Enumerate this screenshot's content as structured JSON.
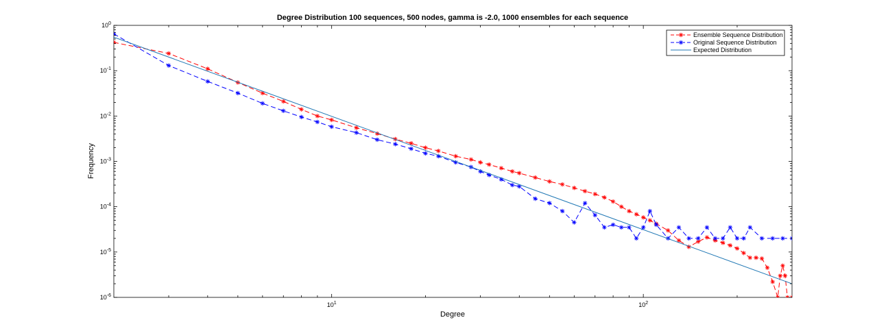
{
  "chart_data": {
    "type": "line",
    "title": "Degree Distribution 100 sequences, 500 nodes, gamma is -2.0, 1000 ensembles for each sequence",
    "xlabel": "Degree",
    "ylabel": "Frequency",
    "xscale": "log",
    "yscale": "log",
    "xlim": [
      2,
      300
    ],
    "ylim": [
      1e-06,
      1
    ],
    "grid": false,
    "legend_position": "top-right",
    "x_ticks": [
      {
        "value": 10,
        "base": "10",
        "exp": "1"
      },
      {
        "value": 100,
        "base": "10",
        "exp": "2"
      }
    ],
    "y_ticks": [
      {
        "value": 1,
        "base": "10",
        "exp": "0"
      },
      {
        "value": 0.1,
        "base": "10",
        "exp": "-1"
      },
      {
        "value": 0.01,
        "base": "10",
        "exp": "-2"
      },
      {
        "value": 0.001,
        "base": "10",
        "exp": "-3"
      },
      {
        "value": 0.0001,
        "base": "10",
        "exp": "-4"
      },
      {
        "value": 1e-05,
        "base": "10",
        "exp": "-5"
      },
      {
        "value": 1e-06,
        "base": "10",
        "exp": "-6"
      }
    ],
    "series": [
      {
        "name": "Ensemble Sequence Distribution",
        "color": "#ff0000",
        "line_style": "dashed",
        "marker": "asterisk",
        "x": [
          2,
          3,
          4,
          5,
          6,
          7,
          8,
          9,
          10,
          12,
          14,
          16,
          18,
          20,
          22,
          25,
          28,
          30,
          32,
          35,
          38,
          40,
          45,
          50,
          55,
          60,
          65,
          70,
          75,
          80,
          85,
          90,
          95,
          100,
          105,
          110,
          120,
          130,
          140,
          150,
          160,
          170,
          180,
          190,
          200,
          210,
          220,
          230,
          240,
          250,
          260,
          270,
          275,
          280,
          285,
          290,
          300
        ],
        "y": [
          0.42,
          0.24,
          0.11,
          0.055,
          0.032,
          0.021,
          0.014,
          0.01,
          0.0082,
          0.0055,
          0.0041,
          0.0031,
          0.0025,
          0.002,
          0.0017,
          0.0013,
          0.0011,
          0.00095,
          0.00085,
          0.00071,
          0.0006,
          0.00055,
          0.00044,
          0.00036,
          0.00031,
          0.00026,
          0.00022,
          0.00019,
          0.00016,
          0.00013,
          0.0001,
          8e-05,
          6.8e-05,
          5.8e-05,
          5e-05,
          4.2e-05,
          3e-05,
          1.8e-05,
          1.3e-05,
          1.7e-05,
          2.1e-05,
          1.8e-05,
          1.6e-05,
          1.4e-05,
          1.2e-05,
          9.5e-06,
          7.5e-06,
          7.5e-06,
          7.2e-06,
          4.5e-06,
          2.2e-06,
          1e-06,
          3e-06,
          5e-06,
          3e-06,
          1e-06,
          1e-06
        ]
      },
      {
        "name": "Original Sequence Distribution",
        "color": "#0000ff",
        "line_style": "dashed",
        "marker": "asterisk",
        "x": [
          2,
          3,
          4,
          5,
          6,
          7,
          8,
          9,
          10,
          12,
          14,
          16,
          18,
          20,
          22,
          25,
          28,
          30,
          32,
          35,
          38,
          40,
          45,
          50,
          55,
          60,
          65,
          70,
          75,
          80,
          85,
          90,
          95,
          100,
          105,
          110,
          120,
          130,
          140,
          150,
          160,
          170,
          180,
          190,
          200,
          210,
          220,
          240,
          260,
          280,
          300
        ],
        "y": [
          0.65,
          0.13,
          0.058,
          0.032,
          0.019,
          0.013,
          0.0095,
          0.0074,
          0.0058,
          0.0043,
          0.003,
          0.0024,
          0.0019,
          0.0015,
          0.0013,
          0.00095,
          0.00075,
          0.0006,
          0.0005,
          0.0004,
          0.0003,
          0.00028,
          0.00015,
          0.00012,
          8e-05,
          4.5e-05,
          0.00012,
          6.5e-05,
          3.5e-05,
          4e-05,
          3.5e-05,
          3.5e-05,
          2e-05,
          3.5e-05,
          8e-05,
          4e-05,
          2e-05,
          3.5e-05,
          2e-05,
          2e-05,
          3.5e-05,
          2e-05,
          2e-05,
          3.5e-05,
          2e-05,
          2e-05,
          3.5e-05,
          2e-05,
          2e-05,
          2e-05,
          2e-05
        ]
      },
      {
        "name": "Expected Distribution",
        "color": "#1f77b4",
        "line_style": "solid",
        "marker": "none",
        "x": [
          2,
          300
        ],
        "y": [
          0.55,
          2e-06
        ]
      }
    ]
  }
}
